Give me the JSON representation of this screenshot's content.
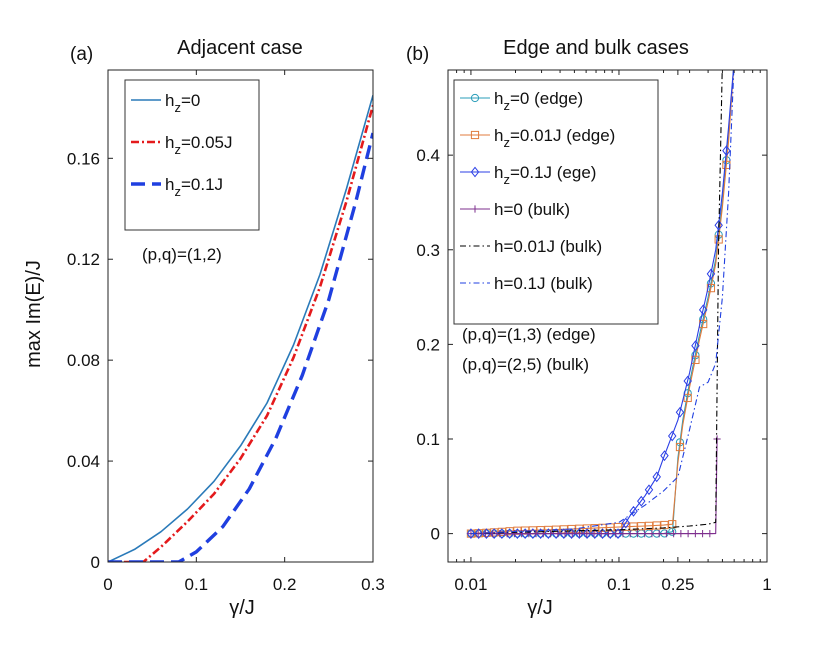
{
  "chart_data": [
    {
      "panel_label": "(a)",
      "type": "line",
      "title": "Adjacent case",
      "xlabel": "γ/J",
      "ylabel": "max Im(E)/J",
      "xlim": [
        0,
        0.3
      ],
      "ylim": [
        0,
        0.195
      ],
      "xticks": [
        0,
        0.1,
        0.2,
        0.3
      ],
      "xtick_labels": [
        "0",
        "0.1",
        "0.2",
        "0.3"
      ],
      "yticks": [
        0,
        0.04,
        0.08,
        0.12,
        0.16
      ],
      "ytick_labels": [
        "0",
        "0.04",
        "0.08",
        "0.12",
        "0.16"
      ],
      "legend_position": "top-left",
      "annotation": "(p,q)=(1,2)",
      "series": [
        {
          "name": "h_z=0",
          "legend_main": "h",
          "legend_sub": "z",
          "legend_rest": "=0",
          "color": "#2a7ab9",
          "dash": "",
          "width": 1.6,
          "x": [
            0,
            0.03,
            0.06,
            0.09,
            0.12,
            0.15,
            0.18,
            0.21,
            0.24,
            0.27,
            0.3
          ],
          "y": [
            0,
            0.005,
            0.012,
            0.021,
            0.032,
            0.046,
            0.063,
            0.086,
            0.114,
            0.148,
            0.185
          ]
        },
        {
          "name": "h_z=0.05J",
          "legend_main": "h",
          "legend_sub": "z",
          "legend_rest": "=0.05J",
          "color": "#e41a1c",
          "dash": "8 3 2 3",
          "width": 2.6,
          "x": [
            0,
            0.04,
            0.06,
            0.09,
            0.12,
            0.15,
            0.18,
            0.21,
            0.24,
            0.27,
            0.3
          ],
          "y": [
            0,
            0,
            0.006,
            0.016,
            0.027,
            0.041,
            0.058,
            0.081,
            0.109,
            0.143,
            0.181
          ]
        },
        {
          "name": "h_z=0.1J",
          "legend_main": "h",
          "legend_sub": "z",
          "legend_rest": "=0.1J",
          "color": "#1f3fe0",
          "dash": "14 7",
          "width": 3.4,
          "x": [
            0,
            0.08,
            0.1,
            0.13,
            0.16,
            0.19,
            0.22,
            0.25,
            0.28,
            0.3
          ],
          "y": [
            0,
            0,
            0.004,
            0.014,
            0.029,
            0.049,
            0.074,
            0.104,
            0.142,
            0.17
          ]
        }
      ]
    },
    {
      "panel_label": "(b)",
      "type": "line",
      "title": "Edge and bulk cases",
      "xlabel": "γ/J",
      "xscale": "log",
      "xlim": [
        0.007,
        1
      ],
      "ylim": [
        -0.03,
        0.49
      ],
      "xticks": [
        0.01,
        0.1,
        0.25,
        1
      ],
      "xtick_labels": [
        "0.01",
        "0.1",
        "0.25",
        "1"
      ],
      "yticks": [
        0,
        0.1,
        0.2,
        0.3,
        0.4
      ],
      "ytick_labels": [
        "0",
        "0.1",
        "0.2",
        "0.3",
        "0.4"
      ],
      "legend_position": "top-left",
      "annotations": [
        "(p,q)=(1,3) (edge)",
        "(p,q)=(2,5) (bulk)"
      ],
      "series": [
        {
          "name": "h_z=0 (edge)",
          "legend_main": "h",
          "legend_sub": "z",
          "legend_rest": "=0 (edge)",
          "color": "#2a9db9",
          "dash": "",
          "marker": "circle",
          "x": [
            0.01,
            0.02,
            0.05,
            0.1,
            0.2,
            0.23,
            0.25,
            0.27,
            0.3,
            0.35,
            0.4,
            0.45,
            0.5,
            0.55,
            0.6
          ],
          "y": [
            0,
            0,
            0,
            0,
            0,
            0.002,
            0.08,
            0.12,
            0.16,
            0.21,
            0.25,
            0.29,
            0.35,
            0.42,
            0.5
          ]
        },
        {
          "name": "h_z=0.01J (edge)",
          "legend_main": "h",
          "legend_sub": "z",
          "legend_rest": "=0.01J (edge)",
          "color": "#e07b3c",
          "dash": "",
          "marker": "square",
          "x": [
            0.01,
            0.02,
            0.05,
            0.1,
            0.15,
            0.2,
            0.23,
            0.25,
            0.27,
            0.3,
            0.35,
            0.4,
            0.45,
            0.5,
            0.55,
            0.6
          ],
          "y": [
            0,
            0.003,
            0.005,
            0.007,
            0.008,
            0.009,
            0.01,
            0.075,
            0.115,
            0.155,
            0.205,
            0.245,
            0.285,
            0.345,
            0.415,
            0.5
          ]
        },
        {
          "name": "h_z=0.1J (ege)",
          "legend_main": "h",
          "legend_sub": "z",
          "legend_rest": "=0.1J (ege)",
          "color": "#2b3fe6",
          "dash": "",
          "marker": "diamond",
          "x": [
            0.01,
            0.02,
            0.05,
            0.1,
            0.12,
            0.15,
            0.18,
            0.2,
            0.25,
            0.3,
            0.35,
            0.4,
            0.45,
            0.5,
            0.55,
            0.6
          ],
          "y": [
            0,
            0,
            0,
            0,
            0.02,
            0.04,
            0.06,
            0.08,
            0.12,
            0.17,
            0.22,
            0.26,
            0.3,
            0.36,
            0.43,
            0.5
          ]
        },
        {
          "name": "h=0 (bulk)",
          "legend_main": "h=0 (bulk)",
          "color": "#7e2f8e",
          "dash": "",
          "marker": "plus",
          "x": [
            0.01,
            0.02,
            0.05,
            0.1,
            0.2,
            0.3,
            0.4,
            0.45,
            0.46
          ],
          "y": [
            0,
            0,
            0,
            0,
            0,
            0,
            0,
            0,
            0.1
          ]
        },
        {
          "name": "h=0.01J (bulk)",
          "legend_main": "h=0.01J (bulk)",
          "color": "#000000",
          "dash": "6 3 1.5 3",
          "marker": "",
          "x": [
            0.01,
            0.05,
            0.1,
            0.2,
            0.3,
            0.4,
            0.45,
            0.47,
            0.5
          ],
          "y": [
            0,
            0.003,
            0.004,
            0.006,
            0.008,
            0.01,
            0.012,
            0.3,
            0.5
          ]
        },
        {
          "name": "h=0.1J (bulk)",
          "legend_main": "h=0.1J (bulk)",
          "color": "#1f3fe0",
          "dash": "6 3 1.5 3",
          "marker": "",
          "x": [
            0.01,
            0.05,
            0.1,
            0.15,
            0.2,
            0.25,
            0.3,
            0.35,
            0.4,
            0.45,
            0.5,
            0.55,
            0.6
          ],
          "y": [
            0,
            0.005,
            0.012,
            0.03,
            0.045,
            0.06,
            0.11,
            0.155,
            0.16,
            0.18,
            0.25,
            0.36,
            0.5
          ]
        }
      ]
    }
  ]
}
